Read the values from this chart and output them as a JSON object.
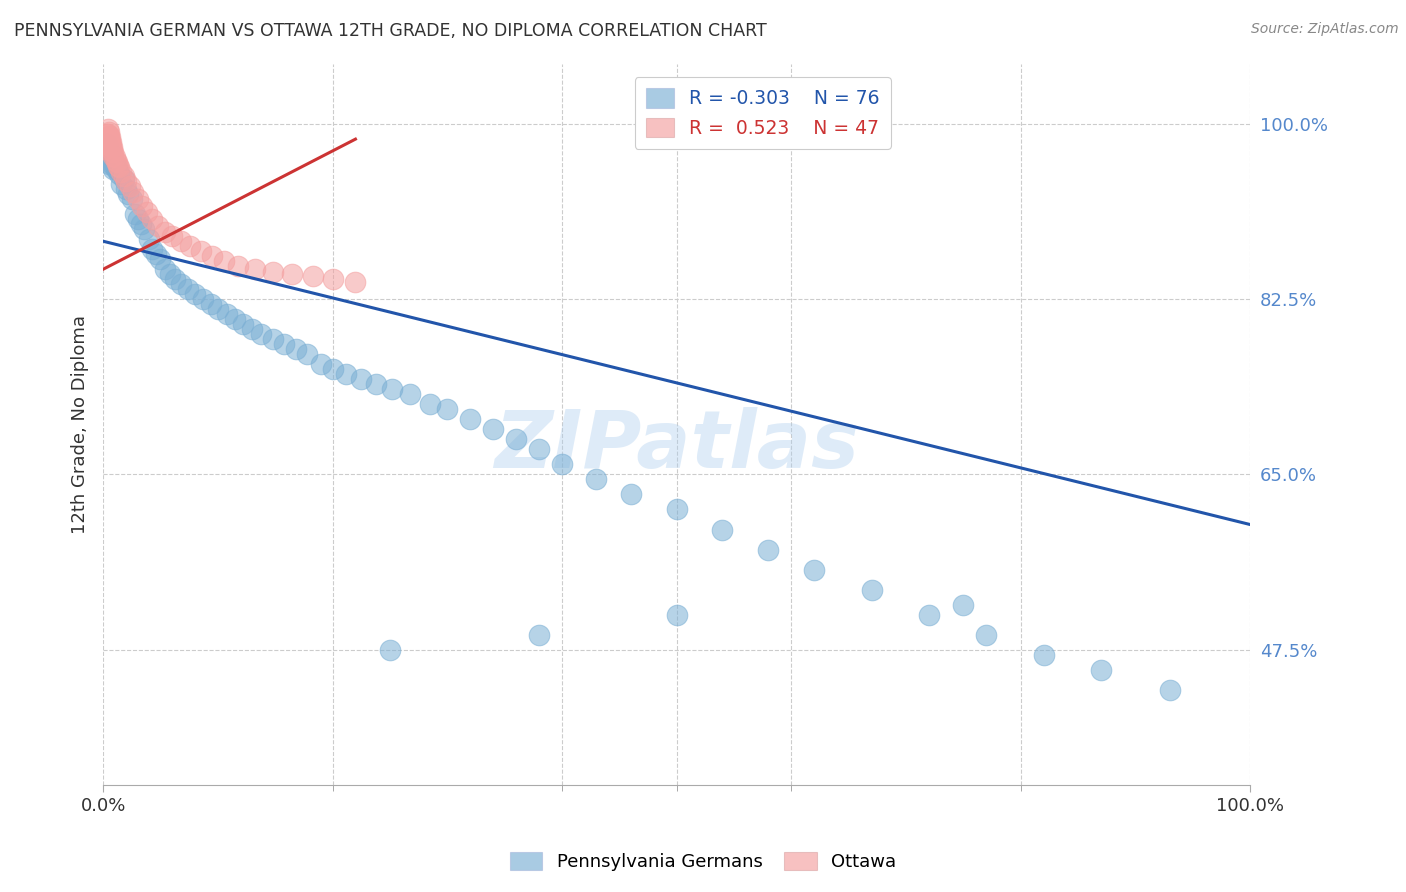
{
  "title": "PENNSYLVANIA GERMAN VS OTTAWA 12TH GRADE, NO DIPLOMA CORRELATION CHART",
  "source": "Source: ZipAtlas.com",
  "ylabel": "12th Grade, No Diploma",
  "background_color": "#ffffff",
  "blue_color": "#7bafd4",
  "pink_color": "#f4a0a0",
  "blue_line_color": "#2255aa",
  "pink_line_color": "#cc3333",
  "legend_r_blue": "-0.303",
  "legend_n_blue": "76",
  "legend_r_pink": "0.523",
  "legend_n_pink": "47",
  "grid_color": "#cccccc",
  "xlim": [
    0.0,
    1.0
  ],
  "ylim": [
    0.34,
    1.06
  ],
  "ytick_positions": [
    0.475,
    0.65,
    0.825,
    1.0
  ],
  "ytick_labels": [
    "47.5%",
    "65.0%",
    "82.5%",
    "100.0%"
  ],
  "xtick_positions": [
    0.0,
    0.2,
    0.4,
    0.5,
    0.6,
    0.8,
    1.0
  ],
  "xtick_major": [
    0.0,
    1.0
  ],
  "xtick_major_labels": [
    "0.0%",
    "100.0%"
  ],
  "blue_line_x": [
    0.0,
    1.0
  ],
  "blue_line_y": [
    0.883,
    0.6
  ],
  "pink_line_x": [
    0.0,
    0.22
  ],
  "pink_line_y": [
    0.855,
    0.985
  ],
  "blue_scatter_x": [
    0.001,
    0.002,
    0.003,
    0.003,
    0.004,
    0.004,
    0.005,
    0.006,
    0.007,
    0.008,
    0.009,
    0.01,
    0.011,
    0.012,
    0.014,
    0.016,
    0.018,
    0.02,
    0.022,
    0.025,
    0.028,
    0.03,
    0.033,
    0.036,
    0.04,
    0.043,
    0.046,
    0.05,
    0.054,
    0.058,
    0.063,
    0.068,
    0.074,
    0.08,
    0.087,
    0.094,
    0.1,
    0.108,
    0.115,
    0.122,
    0.13,
    0.138,
    0.148,
    0.158,
    0.168,
    0.178,
    0.19,
    0.2,
    0.212,
    0.225,
    0.238,
    0.252,
    0.268,
    0.285,
    0.3,
    0.32,
    0.34,
    0.36,
    0.38,
    0.4,
    0.43,
    0.46,
    0.5,
    0.54,
    0.58,
    0.62,
    0.67,
    0.72,
    0.77,
    0.82,
    0.87,
    0.93,
    0.5,
    0.38,
    0.25,
    0.75
  ],
  "blue_scatter_y": [
    0.975,
    0.97,
    0.965,
    0.98,
    0.975,
    0.97,
    0.96,
    0.965,
    0.97,
    0.96,
    0.955,
    0.96,
    0.955,
    0.955,
    0.95,
    0.94,
    0.945,
    0.935,
    0.93,
    0.925,
    0.91,
    0.905,
    0.9,
    0.895,
    0.885,
    0.875,
    0.87,
    0.865,
    0.855,
    0.85,
    0.845,
    0.84,
    0.835,
    0.83,
    0.825,
    0.82,
    0.815,
    0.81,
    0.805,
    0.8,
    0.795,
    0.79,
    0.785,
    0.78,
    0.775,
    0.77,
    0.76,
    0.755,
    0.75,
    0.745,
    0.74,
    0.735,
    0.73,
    0.72,
    0.715,
    0.705,
    0.695,
    0.685,
    0.675,
    0.66,
    0.645,
    0.63,
    0.615,
    0.595,
    0.575,
    0.555,
    0.535,
    0.51,
    0.49,
    0.47,
    0.455,
    0.435,
    0.51,
    0.49,
    0.475,
    0.52
  ],
  "pink_scatter_x": [
    0.001,
    0.001,
    0.002,
    0.002,
    0.003,
    0.003,
    0.004,
    0.004,
    0.005,
    0.005,
    0.006,
    0.006,
    0.007,
    0.007,
    0.008,
    0.008,
    0.009,
    0.009,
    0.01,
    0.011,
    0.012,
    0.013,
    0.014,
    0.016,
    0.018,
    0.02,
    0.023,
    0.026,
    0.03,
    0.034,
    0.038,
    0.043,
    0.048,
    0.054,
    0.06,
    0.068,
    0.076,
    0.085,
    0.095,
    0.105,
    0.118,
    0.132,
    0.148,
    0.165,
    0.183,
    0.2,
    0.22
  ],
  "pink_scatter_y": [
    0.975,
    0.98,
    0.98,
    0.985,
    0.985,
    0.99,
    0.99,
    0.995,
    0.992,
    0.988,
    0.987,
    0.983,
    0.982,
    0.978,
    0.977,
    0.973,
    0.972,
    0.968,
    0.967,
    0.963,
    0.962,
    0.958,
    0.957,
    0.952,
    0.948,
    0.943,
    0.938,
    0.932,
    0.925,
    0.918,
    0.912,
    0.905,
    0.898,
    0.892,
    0.888,
    0.883,
    0.878,
    0.873,
    0.868,
    0.863,
    0.858,
    0.855,
    0.852,
    0.85,
    0.848,
    0.845,
    0.842
  ],
  "watermark": "ZIPatlas",
  "watermark_color": "#aaccee"
}
